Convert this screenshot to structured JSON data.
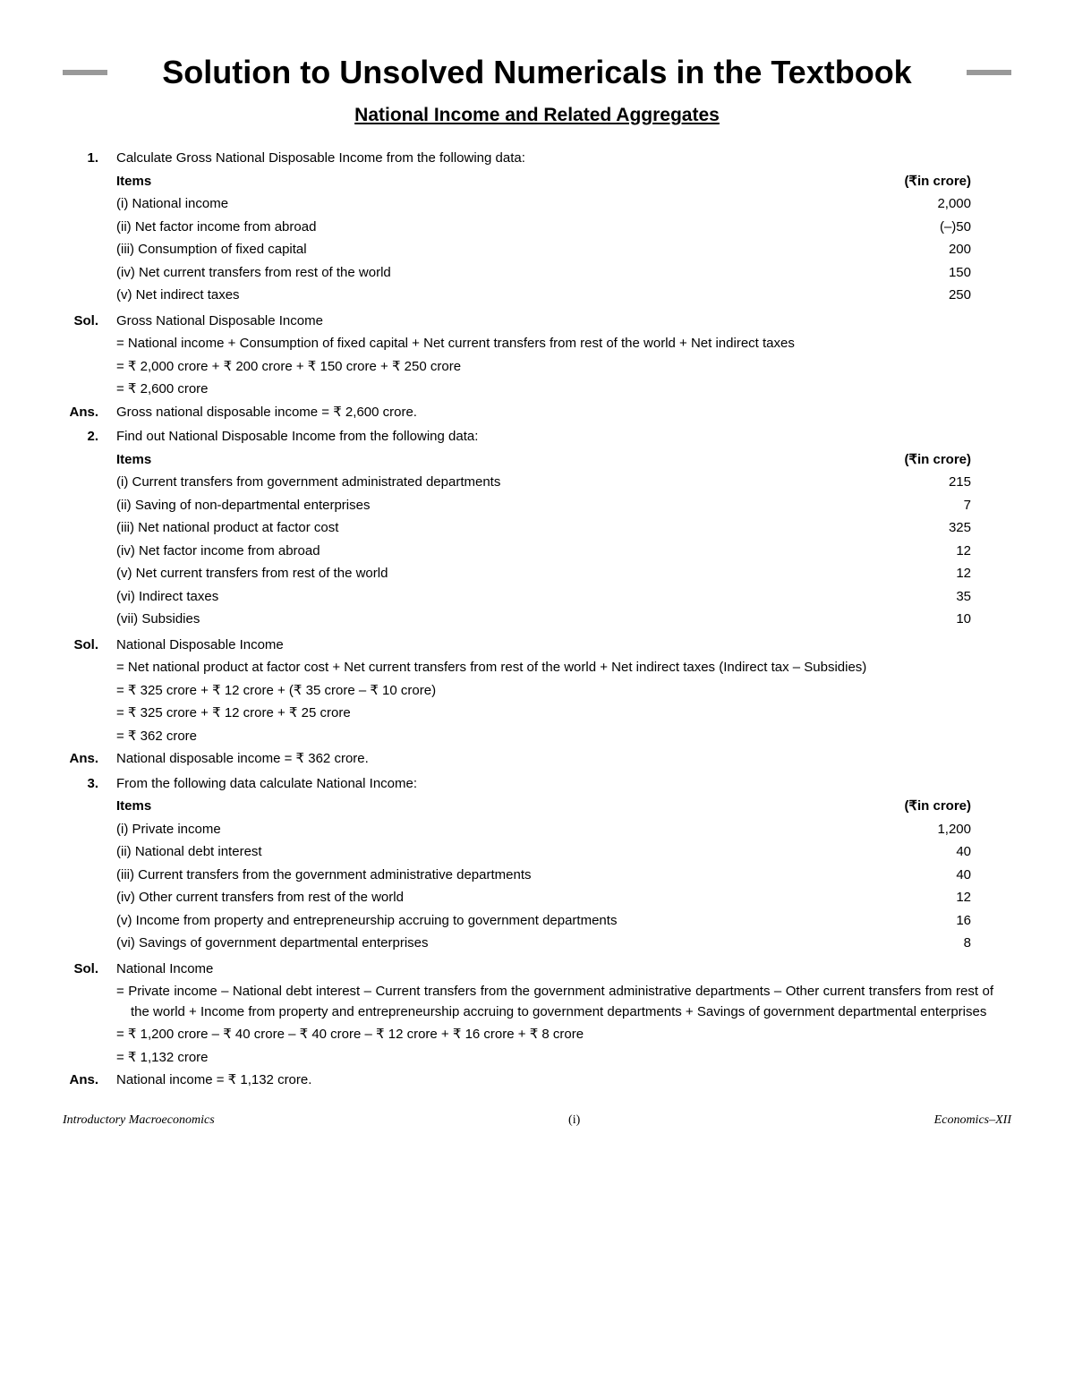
{
  "mainTitle": "Solution to Unsolved Numericals in the Textbook",
  "subtitle": "National Income and Related Aggregates",
  "rupee": "₹",
  "itemsHeader": "Items",
  "croreHeader": "(₹in crore)",
  "q1": {
    "number": "1.",
    "question": "Calculate Gross National Disposable Income from the following data:",
    "items": [
      {
        "text": "(i) National income",
        "value": "2,000"
      },
      {
        "text": "(ii) Net factor income from abroad",
        "value": "(–)50"
      },
      {
        "text": "(iii) Consumption of fixed capital",
        "value": "200"
      },
      {
        "text": "(iv) Net current transfers from rest of the world",
        "value": "150"
      },
      {
        "text": "(v) Net indirect taxes",
        "value": "250"
      }
    ],
    "solLabel": "Sol.",
    "sol1": "Gross National Disposable Income",
    "sol2": "= National income + Consumption of fixed capital + Net current transfers from rest of the world + Net indirect taxes",
    "sol3": "= ₹ 2,000 crore + ₹ 200 crore + ₹ 150 crore + ₹ 250 crore",
    "sol4": "= ₹ 2,600 crore",
    "ansLabel": "Ans.",
    "ans": "Gross national disposable income = ₹ 2,600 crore."
  },
  "q2": {
    "number": "2.",
    "question": "Find out National Disposable Income from the following data:",
    "items": [
      {
        "text": "(i) Current transfers from government administrated departments",
        "value": "215"
      },
      {
        "text": "(ii) Saving of non-departmental enterprises",
        "value": "7"
      },
      {
        "text": "(iii) Net national product at factor cost",
        "value": "325"
      },
      {
        "text": "(iv) Net factor income from abroad",
        "value": "12"
      },
      {
        "text": "(v) Net current transfers from rest of the world",
        "value": "12"
      },
      {
        "text": "(vi) Indirect taxes",
        "value": "35"
      },
      {
        "text": "(vii) Subsidies",
        "value": "10"
      }
    ],
    "solLabel": "Sol.",
    "sol1": "National Disposable Income",
    "sol2": "= Net national product at factor cost + Net current transfers from rest of the world + Net indirect taxes (Indirect tax – Subsidies)",
    "sol3": "= ₹ 325 crore + ₹ 12 crore + (₹ 35 crore – ₹ 10 crore)",
    "sol4": "= ₹ 325 crore + ₹ 12 crore + ₹ 25 crore",
    "sol5": "= ₹ 362 crore",
    "ansLabel": "Ans.",
    "ans": "National disposable income = ₹ 362 crore."
  },
  "q3": {
    "number": "3.",
    "question": "From the following data calculate National Income:",
    "items": [
      {
        "text": "(i) Private income",
        "value": "1,200"
      },
      {
        "text": "(ii) National debt interest",
        "value": "40"
      },
      {
        "text": "(iii) Current transfers from the government administrative departments",
        "value": "40"
      },
      {
        "text": "(iv) Other current transfers from rest of the world",
        "value": "12"
      },
      {
        "text": "(v) Income from property and entrepreneurship accruing to government departments",
        "value": "16"
      },
      {
        "text": "(vi) Savings of government departmental enterprises",
        "value": "8"
      }
    ],
    "solLabel": "Sol.",
    "sol1": "National Income",
    "sol2": "= Private income – National debt interest – Current transfers from the government administrative departments – Other current transfers from rest of the world + Income from property and entrepreneurship accruing to government departments + Savings of government departmental enterprises",
    "sol3": "= ₹ 1,200 crore – ₹ 40 crore  – ₹ 40 crore  – ₹ 12 crore + ₹ 16 crore  + ₹ 8 crore",
    "sol4": "= ₹ 1,132 crore",
    "ansLabel": "Ans.",
    "ans": "National income = ₹ 1,132 crore."
  },
  "footer": {
    "left": "Introductory Macroeconomics",
    "center": "(i)",
    "right": "Economics–XII"
  }
}
